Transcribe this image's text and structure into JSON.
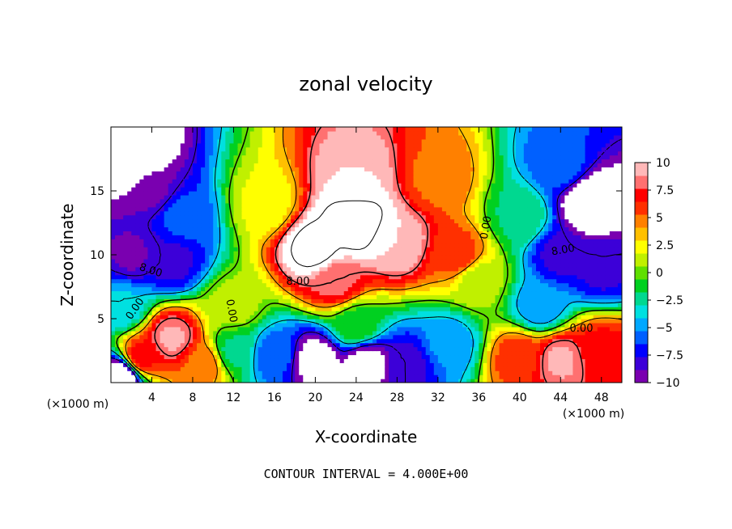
{
  "chart_data": {
    "type": "heatmap",
    "title": "zonal velocity",
    "xlabel": "X-coordinate",
    "ylabel": "Z-coordinate",
    "x_unit": "(×1000 m)",
    "y_unit": "(×1000 m)",
    "xlim": [
      0,
      50
    ],
    "ylim": [
      0,
      20
    ],
    "x_ticks": [
      4,
      8,
      12,
      16,
      20,
      24,
      28,
      32,
      36,
      40,
      44,
      48
    ],
    "y_ticks": [
      5,
      10,
      15
    ],
    "colorbar": {
      "range": [
        -10,
        10
      ],
      "ticks": [
        10,
        7.5,
        5,
        2.5,
        0,
        -2.5,
        -5,
        -7.5,
        -10
      ],
      "tick_labels": [
        "10",
        "7.5",
        "5",
        "2.5",
        "0",
        "−2.5",
        "−5",
        "−7.5",
        "−10"
      ],
      "colors": [
        "#7a00b0",
        "#3c00d8",
        "#0000ff",
        "#0060ff",
        "#00a8ff",
        "#00e0e0",
        "#00d890",
        "#00d020",
        "#60e000",
        "#c0f000",
        "#ffff00",
        "#ffc000",
        "#ff8000",
        "#ff3000",
        "#ff0000",
        "#ff7070",
        "#ffb8b8"
      ]
    },
    "contour_labels": [
      "0.00",
      "0.00",
      "0.00",
      "0.00",
      "8.00",
      "8.00",
      "8.00"
    ],
    "footer": "CONTOUR INTERVAL = 4.000E+00",
    "features": [
      {
        "x": 24,
        "z": 12.5,
        "value": 14
      },
      {
        "x": 20,
        "z": 10.5,
        "value": 13
      },
      {
        "x": 24,
        "z": 16,
        "value": 10
      },
      {
        "x": 28,
        "z": 11,
        "value": 10
      },
      {
        "x": 22,
        "z": 8,
        "value": 8
      },
      {
        "x": 34,
        "z": 10,
        "value": 6
      },
      {
        "x": 32,
        "z": 16,
        "value": 5
      },
      {
        "x": 6,
        "z": 3.5,
        "value": 9
      },
      {
        "x": 3,
        "z": 2,
        "value": 7
      },
      {
        "x": 9,
        "z": 1.5,
        "value": 5
      },
      {
        "x": 44,
        "z": 1.8,
        "value": 9
      },
      {
        "x": 48,
        "z": 2.5,
        "value": 7
      },
      {
        "x": 40,
        "z": 2,
        "value": 6
      },
      {
        "x": 15,
        "z": 14,
        "value": 2
      },
      {
        "x": 12,
        "z": 6,
        "value": 1
      },
      {
        "x": 36,
        "z": 8,
        "value": 1
      },
      {
        "x": 2,
        "z": 17.5,
        "value": -14
      },
      {
        "x": 4,
        "z": 15,
        "value": -9
      },
      {
        "x": 7,
        "z": 13,
        "value": -6
      },
      {
        "x": 2,
        "z": 10,
        "value": -9
      },
      {
        "x": 6,
        "z": 9.5,
        "value": -8
      },
      {
        "x": 1,
        "z": 6,
        "value": -4
      },
      {
        "x": 47,
        "z": 14,
        "value": -13
      },
      {
        "x": 44,
        "z": 17,
        "value": -6
      },
      {
        "x": 44,
        "z": 10,
        "value": -8
      },
      {
        "x": 48,
        "z": 9,
        "value": -8
      },
      {
        "x": 42,
        "z": 6,
        "value": -5
      },
      {
        "x": 40,
        "z": 13,
        "value": -2
      },
      {
        "x": 20,
        "z": 1.8,
        "value": -11
      },
      {
        "x": 25,
        "z": 1.5,
        "value": -11
      },
      {
        "x": 16,
        "z": 2.2,
        "value": -6
      },
      {
        "x": 29,
        "z": 1.5,
        "value": -8
      },
      {
        "x": 33,
        "z": 3,
        "value": -5
      },
      {
        "x": 12,
        "z": 2.5,
        "value": -2
      },
      {
        "x": 1,
        "z": 0.5,
        "value": -12
      },
      {
        "x": 24,
        "z": 4.5,
        "value": -1
      }
    ]
  }
}
